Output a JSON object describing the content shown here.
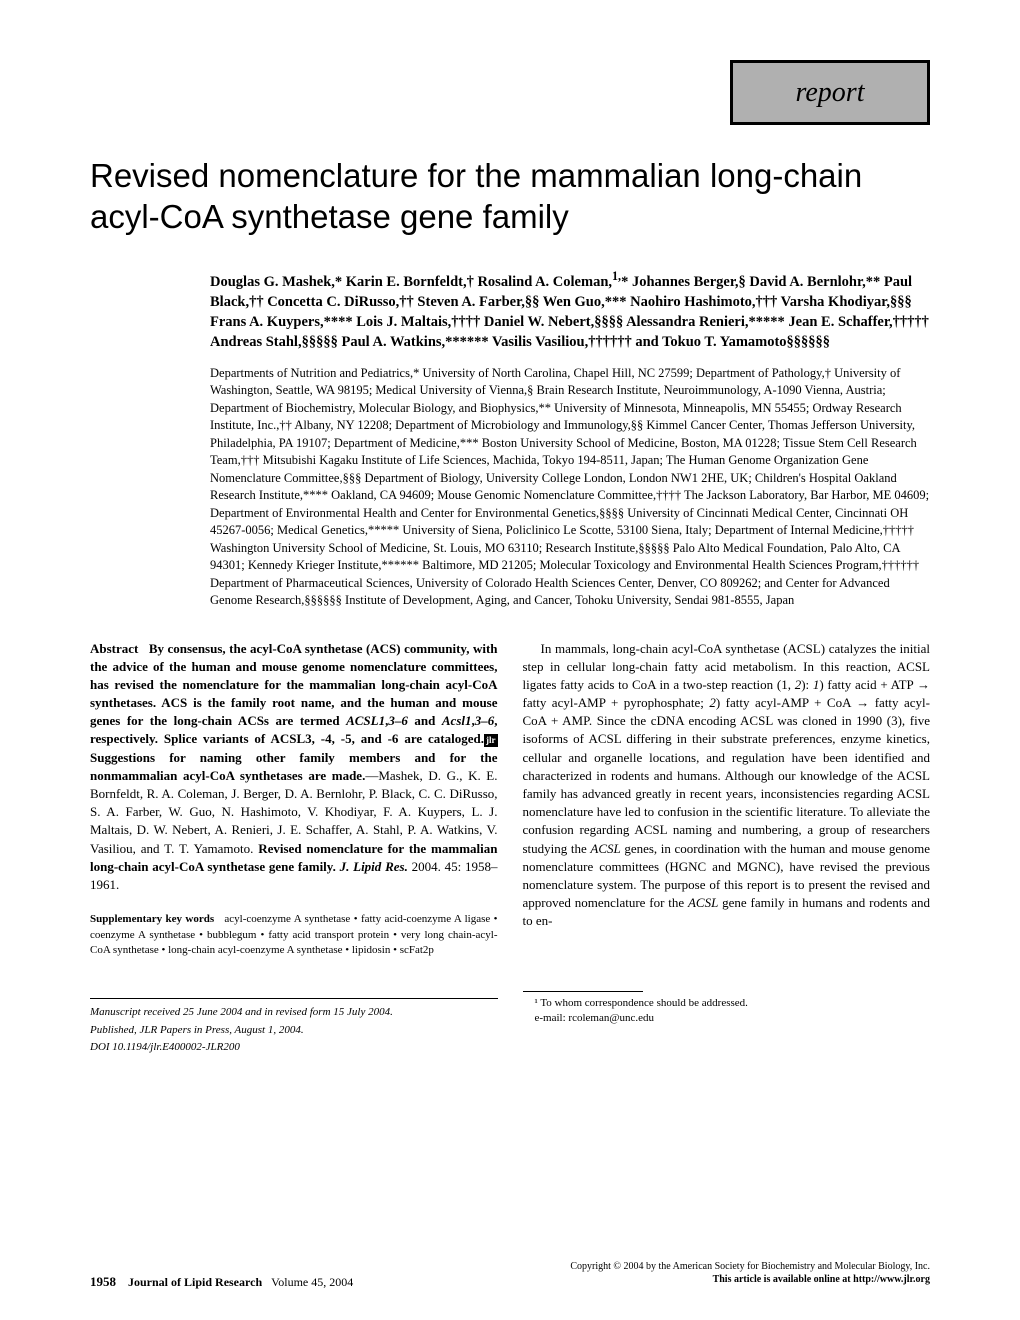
{
  "badge": "report",
  "title": "Revised nomenclature for the mammalian long-chain acyl-CoA synthetase gene family",
  "authors_html": "Douglas G. Mashek,* Karin E. Bornfeldt,† Rosalind A. Coleman,<sup>1,</sup>* Johannes Berger,§ David A. Bernlohr,** Paul Black,†† Concetta C. DiRusso,†† Steven A. Farber,§§ Wen Guo,*** Naohiro Hashimoto,††† Varsha Khodiyar,§§§ Frans A. Kuypers,**** Lois J. Maltais,†††† Daniel W. Nebert,§§§§ Alessandra Renieri,***** Jean E. Schaffer,††††† Andreas Stahl,§§§§§ Paul A. Watkins,****** Vasilis Vasiliou,†††††† and Tokuo T. Yamamoto§§§§§§",
  "affiliations": "Departments of Nutrition and Pediatrics,* University of North Carolina, Chapel Hill, NC 27599; Department of Pathology,† University of Washington, Seattle, WA 98195; Medical University of Vienna,§ Brain Research Institute, Neuroimmunology, A-1090 Vienna, Austria; Department of Biochemistry, Molecular Biology, and Biophysics,** University of Minnesota, Minneapolis, MN 55455; Ordway Research Institute, Inc.,†† Albany, NY 12208; Department of Microbiology and Immunology,§§ Kimmel Cancer Center, Thomas Jefferson University, Philadelphia, PA 19107; Department of Medicine,*** Boston University School of Medicine, Boston, MA 01228; Tissue Stem Cell Research Team,††† Mitsubishi Kagaku Institute of Life Sciences, Machida, Tokyo 194-8511, Japan; The Human Genome Organization Gene Nomenclature Committee,§§§ Department of Biology, University College London, London NW1 2HE, UK; Children's Hospital Oakland Research Institute,**** Oakland, CA 94609; Mouse Genomic Nomenclature Committee,†††† The Jackson Laboratory, Bar Harbor, ME 04609; Department of Environmental Health and Center for Environmental Genetics,§§§§ University of Cincinnati Medical Center, Cincinnati OH 45267-0056; Medical Genetics,***** University of Siena, Policlinico Le Scotte, 53100 Siena, Italy; Department of Internal Medicine,††††† Washington University School of Medicine, St. Louis, MO 63110; Research Institute,§§§§§ Palo Alto Medical Foundation, Palo Alto, CA 94301; Kennedy Krieger Institute,****** Baltimore, MD 21205; Molecular Toxicology and Environmental Health Sciences Program,†††††† Department of Pharmaceutical Sciences, University of Colorado Health Sciences Center, Denver, CO 809262; and Center for Advanced Genome Research,§§§§§§ Institute of Development, Aging, and Cancer, Tohoku University, Sendai 981-8555, Japan",
  "abstract": {
    "label": "Abstract",
    "text_before_icon": "By consensus, the acyl-CoA synthetase (ACS) community, with the advice of the human and mouse genome nomenclature committees, has revised the nomenclature for the mammalian long-chain acyl-CoA synthetases. ACS is the family root name, and the human and mouse genes for the long-chain ACSs are termed ",
    "italic1": "ACSL1",
    "text_mid1": ",",
    "italic2": "3–6",
    "text_mid2": " and ",
    "italic3": "Acsl1",
    "text_mid3": ",",
    "italic4": "3–6",
    "text_mid4": ", respectively. Splice variants of ACSL3, -4, -5, and -6 are cataloged.",
    "text_after_icon": " Suggestions for naming other family members and for the nonmammalian acyl-CoA synthetases are made.",
    "citation": "—Mashek, D. G., K. E. Bornfeldt, R. A. Coleman, J. Berger, D. A. Bernlohr, P. Black, C. C. DiRusso, S. A. Farber, W. Guo, N. Hashimoto, V. Khodiyar, F. A. Kuypers, L. J. Maltais, D. W. Nebert, A. Renieri, J. E. Schaffer, A. Stahl, P. A. Watkins, V. Vasiliou, and T. T. Yamamoto. ",
    "citation_title": "Revised nomenclature for the mammalian long-chain acyl-CoA synthetase gene family.",
    "journal": "J. Lipid Res.",
    "year_vol": " 2004. 45: 1958–1961."
  },
  "keywords": {
    "label": "Supplementary key words",
    "text": "acyl-coenzyme A synthetase • fatty acid-coenzyme A ligase • coenzyme A synthetase • bubblegum • fatty acid transport protein • very long chain-acyl-CoA synthetase • long-chain acyl-coenzyme A synthetase • lipidosin • scFat2p"
  },
  "manuscript": {
    "received": "Manuscript received 25 June 2004 and in revised form 15 July 2004.",
    "published": "Published, JLR Papers in Press, August 1, 2004.",
    "doi": "DOI 10.1194/jlr.E400002-JLR200"
  },
  "intro_text": "In mammals, long-chain acyl-CoA synthetase (ACSL) catalyzes the initial step in cellular long-chain fatty acid metabolism. In this reaction, ACSL ligates fatty acids to CoA in a two-step reaction (1, 2): 1) fatty acid + ATP → fatty acyl-AMP + pyrophosphate; 2) fatty acyl-AMP + CoA → fatty acyl-CoA + AMP. Since the cDNA encoding ACSL was cloned in 1990 (3), five isoforms of ACSL differing in their substrate preferences, enzyme kinetics, cellular and organelle locations, and regulation have been identified and characterized in rodents and humans. Although our knowledge of the ACSL family has advanced greatly in recent years, inconsistencies regarding ACSL nomenclature have led to confusion in the scientific literature. To alleviate the confusion regarding ACSL naming and numbering, a group of researchers studying the ACSL genes, in coordination with the human and mouse genome nomenclature committees (HGNC and MGNC), have revised the previous nomenclature system. The purpose of this report is to present the revised and approved nomenclature for the ACSL gene family in humans and rodents and to en-",
  "correspondence": {
    "line1": "¹ To whom correspondence should be addressed.",
    "line2": "e-mail: rcoleman@unc.edu"
  },
  "footer": {
    "copyright": "Copyright © 2004 by the American Society for Biochemistry and Molecular Biology, Inc.",
    "page": "1958",
    "journal": "Journal of Lipid Research",
    "volume": "Volume 45, 2004",
    "online": "This article is available online at http://www.jlr.org"
  }
}
